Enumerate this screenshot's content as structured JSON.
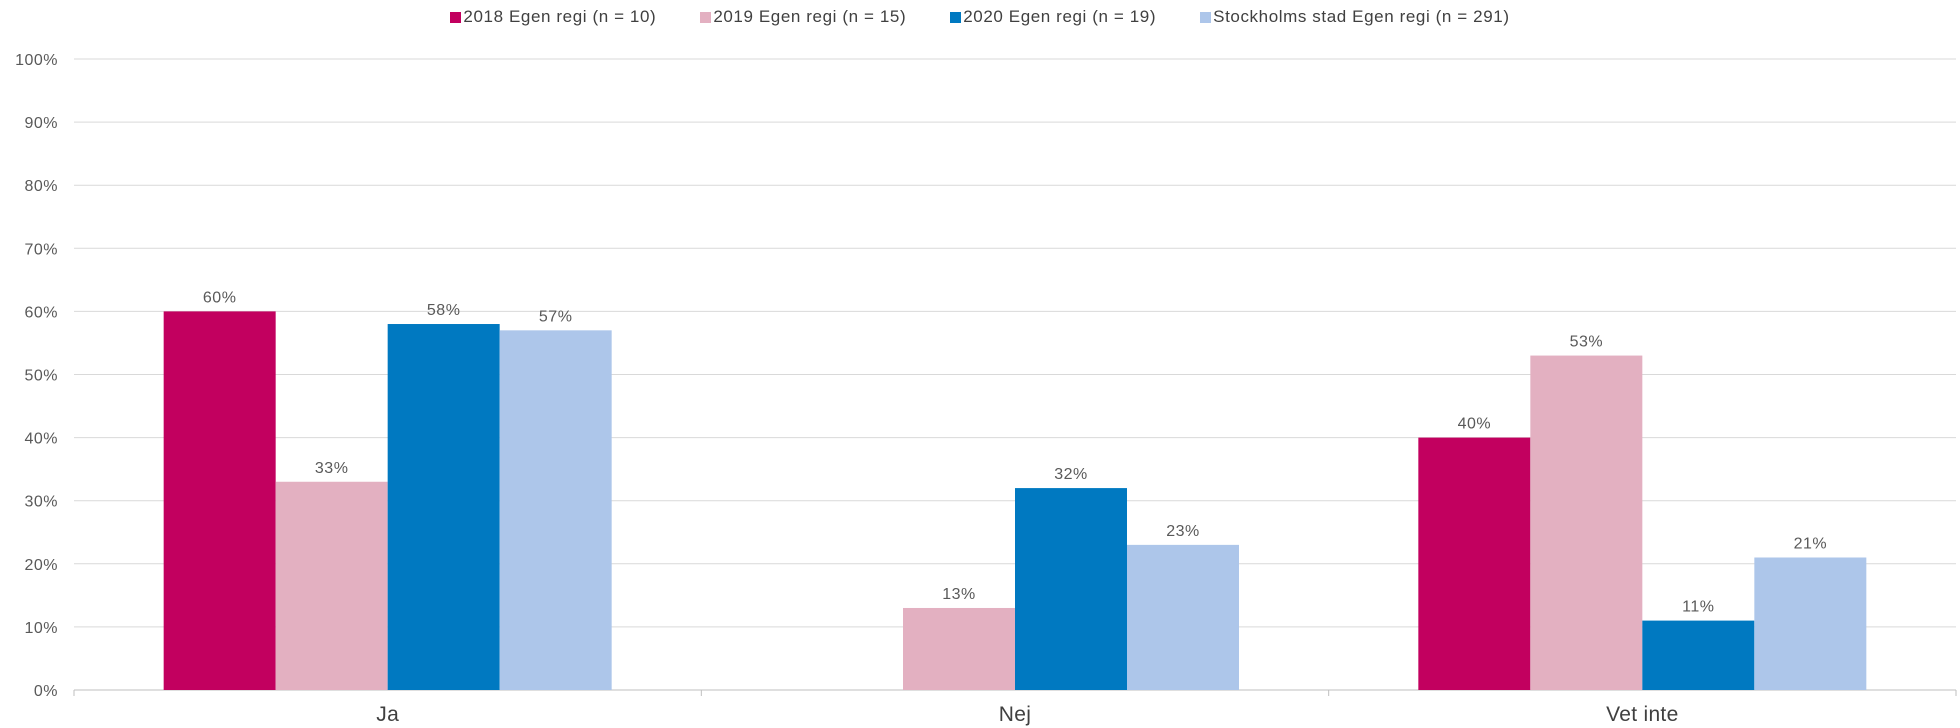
{
  "chart_data": {
    "type": "bar",
    "categories": [
      "Ja",
      "Nej",
      "Vet inte"
    ],
    "series": [
      {
        "name": "2018 Egen regi (n = 10)",
        "color": "#c2005f",
        "values": [
          60,
          null,
          40
        ],
        "labels": [
          "60%",
          "",
          "40%"
        ]
      },
      {
        "name": "2019 Egen regi (n = 15)",
        "color": "#e3b0c1",
        "values": [
          33,
          13,
          53
        ],
        "labels": [
          "33%",
          "13%",
          "53%"
        ]
      },
      {
        "name": "2020 Egen regi (n = 19)",
        "color": "#0079c1",
        "values": [
          58,
          32,
          11
        ],
        "labels": [
          "58%",
          "32%",
          "11%"
        ]
      },
      {
        "name": "Stockholms stad Egen regi (n = 291)",
        "color": "#adc6ea",
        "values": [
          57,
          23,
          21
        ],
        "labels": [
          "57%",
          "23%",
          "21%"
        ]
      }
    ],
    "y_ticks": [
      "0%",
      "10%",
      "20%",
      "30%",
      "40%",
      "50%",
      "60%",
      "70%",
      "80%",
      "90%",
      "100%"
    ],
    "ylim": [
      0,
      100
    ],
    "grid": true,
    "legend_position": "top-center",
    "title": "",
    "xlabel": "",
    "ylabel": ""
  }
}
